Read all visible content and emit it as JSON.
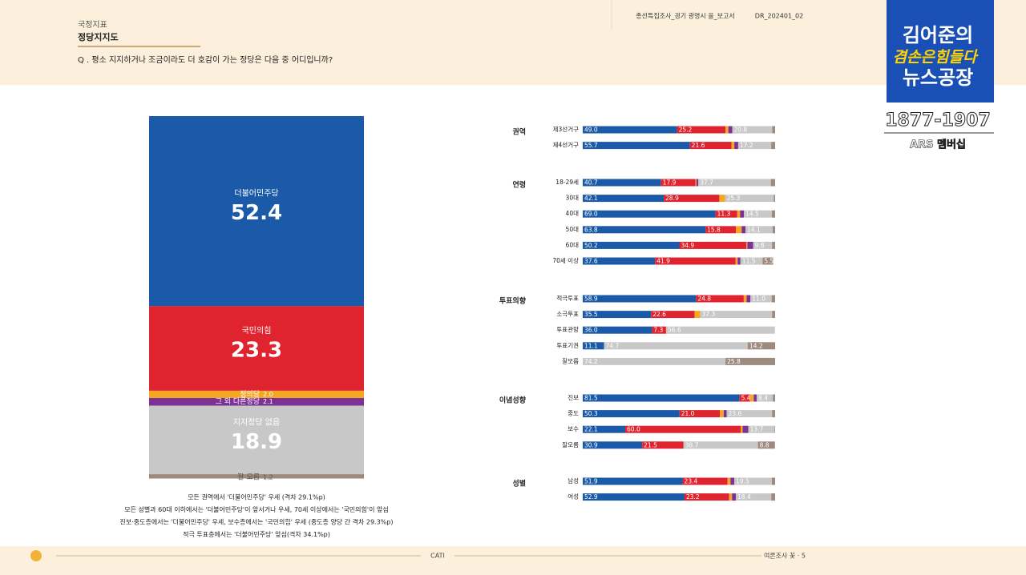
{
  "header": {
    "section": "국정지표",
    "title": "정당지지도",
    "question": "Q . 평소 지지하거나 조금이라도 더 호감이 가는 정당은 다음 중 어디입니까?",
    "report": "총선특집조사_경기 광명시 을_보고서",
    "code": "DR_202401_02"
  },
  "overlay": {
    "line1": "김어준의",
    "line2": "겸손은힘들다",
    "line3": "뉴스공장",
    "phone": "1877-1907",
    "membership": "ARS 멤버십"
  },
  "notes": [
    "모든 권역에서 '더불어민주당' 우세 (격차 29.1%p)",
    "모든 성별과 60대 이하에서는 '더불어민주당'이 앞서거나 우세, 70세 이상에서는 '국민의힘'이 앞섬",
    "진보·중도층에서는 '더불어민주당' 우세, 보수층에서는 '국민의힘' 우세 (중도층 양당 간 격차 29.3%p)",
    "적극 투표층에서는 '더불어민주당' 앞섬(격차 34.1%p)"
  ],
  "footer": {
    "method": "CATI",
    "page": "여론조사 꽃 · 5"
  },
  "chart_data": [
    {
      "type": "stacked_column",
      "ylim": [
        0,
        100
      ],
      "series": [
        {
          "name": "더불어민주당",
          "color": "#1a5aa8",
          "values": [
            52.4
          ],
          "value_labels": [
            "52.4"
          ]
        },
        {
          "name": "국민의힘",
          "color": "#e0242f",
          "values": [
            23.3
          ],
          "value_labels": [
            "23.3"
          ]
        },
        {
          "name": "정의당",
          "color": "#f5a623",
          "values": [
            2.0
          ],
          "value_labels": [
            "2.0"
          ]
        },
        {
          "name": "그 외 다른정당",
          "color": "#7b3294",
          "values": [
            2.1
          ],
          "value_labels": [
            "2.1"
          ]
        },
        {
          "name": "지지정당 없음",
          "color": "#c8c8c8",
          "values": [
            18.9
          ],
          "value_labels": [
            "18.9"
          ]
        },
        {
          "name": "잘 모름",
          "color": "#9e8a7e",
          "values": [
            1.2
          ],
          "value_labels": [
            "1.2"
          ]
        }
      ]
    },
    {
      "type": "stacked_hbar",
      "xlim": [
        0,
        100
      ],
      "groups": [
        {
          "name": "권역",
          "categories": [
            "제3선거구",
            "제4선거구"
          ]
        },
        {
          "name": "연령",
          "categories": [
            "18-29세",
            "30대",
            "40대",
            "50대",
            "60대",
            "70세 이상"
          ]
        },
        {
          "name": "투표의향",
          "categories": [
            "적극투표",
            "소극투표",
            "투표관망",
            "투표기권",
            "잘모름"
          ]
        },
        {
          "name": "이념성향",
          "categories": [
            "진보",
            "중도",
            "보수",
            "잘모름"
          ]
        },
        {
          "name": "성별",
          "categories": [
            "남성",
            "여성"
          ]
        }
      ],
      "series": [
        {
          "color": "#1a5aa8",
          "values": [
            49.0,
            55.7,
            40.7,
            42.1,
            69.0,
            63.8,
            50.2,
            37.6,
            58.9,
            35.5,
            36.0,
            11.1,
            0,
            81.5,
            50.3,
            22.1,
            30.9,
            51.9,
            52.9
          ],
          "value_labels": [
            "49.0",
            "55.7",
            "40.7",
            "42.1",
            "69.0",
            "63.8",
            "50.2",
            "37.6",
            "58.9",
            "35.5",
            "36.0",
            "11.1",
            null,
            "81.5",
            "50.3",
            "22.1",
            "30.9",
            "51.9",
            "52.9"
          ]
        },
        {
          "color": "#e0242f",
          "values": [
            25.2,
            21.6,
            17.9,
            28.9,
            11.3,
            15.8,
            34.9,
            41.9,
            24.8,
            22.6,
            7.3,
            0,
            0,
            5.4,
            21.0,
            60.0,
            21.5,
            23.4,
            23.2
          ],
          "value_labels": [
            "25.2",
            "21.6",
            "17.9",
            "28.9",
            "11.3",
            "15.8",
            "34.9",
            "41.9",
            "24.8",
            "22.6",
            "7.3",
            null,
            null,
            "5.4",
            "21.0",
            "60.0",
            "21.5",
            "23.4",
            "23.2"
          ]
        },
        {
          "color": "#f5a623",
          "values": [
            1.5,
            1.5,
            0.5,
            3.0,
            1.5,
            3.0,
            0.5,
            1.0,
            1.5,
            3.0,
            0,
            0,
            0,
            2.0,
            2.0,
            1.0,
            0,
            1.5,
            1.5
          ]
        },
        {
          "color": "#7b3294",
          "values": [
            2.0,
            2.0,
            1.0,
            0,
            2.0,
            2.0,
            3.0,
            1.5,
            2.0,
            0,
            0,
            0,
            0,
            1.5,
            1.5,
            3.0,
            0,
            2.0,
            2.0
          ]
        },
        {
          "color": "#c8c8c8",
          "values": [
            20.8,
            17.2,
            37.7,
            25.3,
            14.5,
            14.1,
            9.8,
            11.5,
            11.0,
            37.3,
            56.6,
            74.7,
            74.2,
            8.4,
            23.6,
            13.7,
            38.7,
            19.5,
            18.4
          ],
          "value_labels": [
            "20.8",
            "17.2",
            "37.7",
            "25.3",
            "14.5",
            "14.1",
            "9.8",
            "11.5",
            "11.0",
            "37.3",
            "56.6",
            "74.7",
            "74.2",
            "8.4",
            "23.6",
            "13.7",
            "38.7",
            "19.5",
            "18.4"
          ]
        },
        {
          "color": "#9e8a7e",
          "values": [
            1.5,
            2.0,
            2.2,
            0.7,
            1.7,
            1.3,
            1.6,
            5.5,
            1.8,
            1.6,
            0,
            14.2,
            25.8,
            1.2,
            1.6,
            0.2,
            8.8,
            1.7,
            2.0
          ],
          "value_labels": [
            null,
            null,
            null,
            null,
            null,
            null,
            null,
            "5.5",
            null,
            null,
            null,
            "14.2",
            "25.8",
            null,
            null,
            null,
            "8.8",
            null,
            null
          ]
        }
      ]
    }
  ]
}
